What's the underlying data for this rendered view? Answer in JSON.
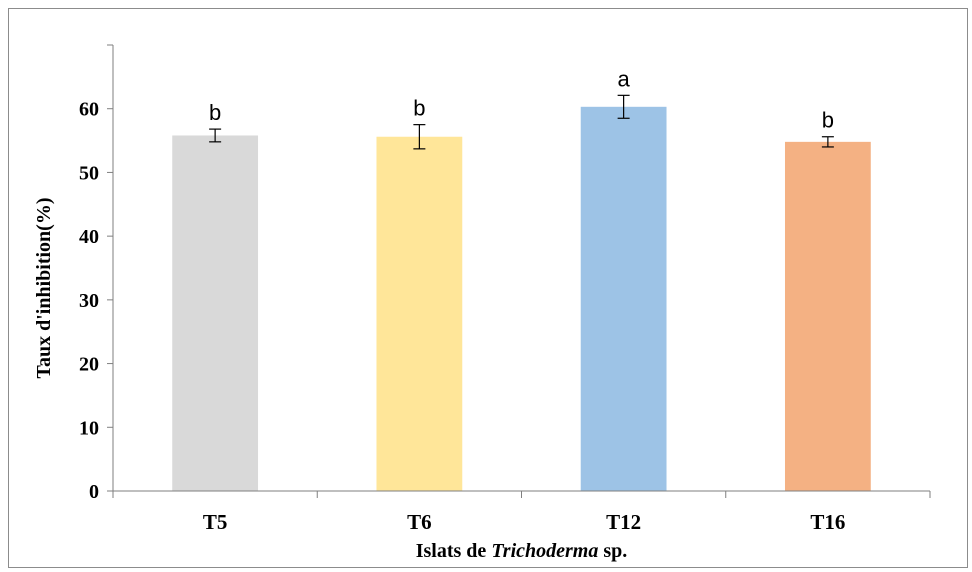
{
  "chart_data": {
    "type": "bar",
    "categories": [
      "T5",
      "T6",
      "T12",
      "T16"
    ],
    "values": [
      55.8,
      55.6,
      60.3,
      54.8
    ],
    "errors": [
      1.0,
      1.9,
      1.8,
      0.8
    ],
    "significance_letters": [
      "b",
      "b",
      "a",
      "b"
    ],
    "colors": [
      "#d9d9d9",
      "#ffe699",
      "#9dc3e6",
      "#f4b183"
    ],
    "title": "",
    "xlabel_parts": [
      "Islats de ",
      "Trichoderma",
      " sp."
    ],
    "ylabel": "Taux d'inhibition(%)",
    "ylim": [
      0,
      70
    ],
    "yticks": [
      0,
      10,
      20,
      30,
      40,
      50,
      60
    ],
    "grid": false,
    "legend": "none"
  }
}
